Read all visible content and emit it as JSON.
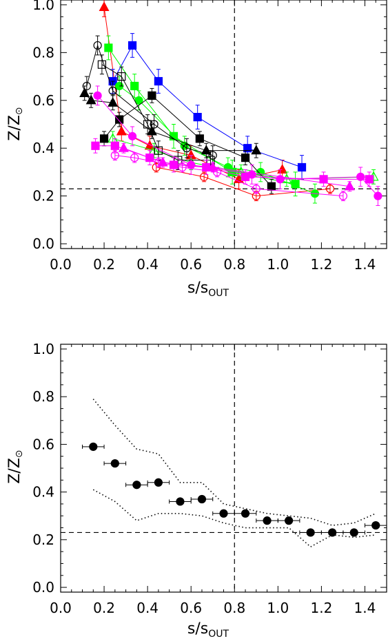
{
  "chart_data": [
    {
      "type": "scatter",
      "panel": "top",
      "xlabel": "s/s",
      "xlabel_sub": "OUT",
      "ylabel": "Z/Z",
      "ylabel_symbol": "⊙",
      "xlim": [
        0.0,
        1.5
      ],
      "ylim": [
        -0.02,
        1.02
      ],
      "xticks": [
        "0.0",
        "0.2",
        "0.4",
        "0.6",
        "0.8",
        "1.0",
        "1.2",
        "1.4"
      ],
      "yticks": [
        "0.0",
        "0.2",
        "0.4",
        "0.6",
        "0.8",
        "1.0"
      ],
      "grid": false,
      "reference_lines": {
        "vertical_x": 0.8,
        "horizontal_y": 0.23,
        "style": "dashed"
      },
      "series": [
        {
          "color": "#ff0000",
          "marker": "triangle",
          "filled": true,
          "x": [
            0.2,
            0.28,
            0.41,
            0.6,
            0.82,
            1.02
          ],
          "y": [
            0.99,
            0.47,
            0.41,
            0.37,
            0.27,
            0.31
          ],
          "yerr": 0.04
        },
        {
          "color": "#ff0000",
          "marker": "circle",
          "filled": false,
          "x": [
            0.44,
            0.66,
            0.9,
            1.24
          ],
          "y": [
            0.32,
            0.28,
            0.2,
            0.23
          ],
          "yerr": 0.02
        },
        {
          "color": "#0000ff",
          "marker": "square",
          "filled": true,
          "x": [
            0.24,
            0.33,
            0.45,
            0.63,
            0.86,
            1.11
          ],
          "y": [
            0.68,
            0.83,
            0.68,
            0.53,
            0.4,
            0.32
          ],
          "yerr": 0.05
        },
        {
          "color": "#00ff00",
          "marker": "square",
          "filled": true,
          "x": [
            0.22,
            0.34,
            0.52,
            0.79,
            1.08
          ],
          "y": [
            0.82,
            0.66,
            0.45,
            0.3,
            0.25
          ],
          "yerr": 0.05
        },
        {
          "color": "#00ff00",
          "marker": "circle",
          "filled": true,
          "x": [
            0.27,
            0.36,
            0.57,
            0.77,
            0.92,
            1.17
          ],
          "y": [
            0.66,
            0.6,
            0.41,
            0.32,
            0.3,
            0.21
          ],
          "yerr": 0.04
        },
        {
          "color": "#00ff00",
          "marker": "triangle",
          "filled": false,
          "x": [
            0.24,
            0.43,
            0.6,
            0.83,
            1.04,
            1.44
          ],
          "y": [
            0.44,
            0.39,
            0.34,
            0.3,
            0.27,
            0.28
          ],
          "yerr": 0.03
        },
        {
          "color": "#000000",
          "marker": "triangle",
          "filled": true,
          "x": [
            0.11,
            0.14,
            0.24,
            0.42,
            0.67,
            0.9
          ],
          "y": [
            0.63,
            0.6,
            0.59,
            0.47,
            0.39,
            0.39
          ],
          "yerr": 0.03
        },
        {
          "color": "#000000",
          "marker": "circle",
          "filled": false,
          "x": [
            0.12,
            0.17,
            0.24,
            0.43,
            0.58,
            0.7
          ],
          "y": [
            0.66,
            0.83,
            0.64,
            0.5,
            0.4,
            0.37
          ],
          "yerr": 0.04
        },
        {
          "color": "#000000",
          "marker": "square",
          "filled": false,
          "x": [
            0.19,
            0.28,
            0.4,
            0.45,
            0.54,
            0.69
          ],
          "y": [
            0.75,
            0.7,
            0.5,
            0.39,
            0.35,
            0.35
          ],
          "yerr": 0.04
        },
        {
          "color": "#000000",
          "marker": "square",
          "filled": true,
          "x": [
            0.2,
            0.27,
            0.42,
            0.64,
            0.85,
            0.97
          ],
          "y": [
            0.44,
            0.52,
            0.62,
            0.44,
            0.36,
            0.24
          ],
          "yerr": 0.03
        },
        {
          "color": "#ff00ff",
          "marker": "circle",
          "filled": true,
          "x": [
            0.17,
            0.33,
            0.6,
            0.88,
            1.01,
            1.38,
            1.46
          ],
          "y": [
            0.62,
            0.45,
            0.33,
            0.29,
            0.27,
            0.28,
            0.2
          ],
          "yerr": 0.04
        },
        {
          "color": "#ff00ff",
          "marker": "square",
          "filled": true,
          "x": [
            0.16,
            0.25,
            0.41,
            0.52,
            0.67,
            0.85,
            1.21,
            1.42
          ],
          "y": [
            0.41,
            0.41,
            0.36,
            0.33,
            0.32,
            0.28,
            0.27,
            0.27
          ],
          "yerr": 0.03
        },
        {
          "color": "#ff00ff",
          "marker": "triangle",
          "filled": true,
          "x": [
            0.29,
            0.47,
            0.7,
            1.33
          ],
          "y": [
            0.4,
            0.34,
            0.32,
            0.24
          ],
          "yerr": 0.02
        },
        {
          "color": "#ff00ff",
          "marker": "circle",
          "filled": false,
          "x": [
            0.25,
            0.34,
            0.45,
            0.56,
            0.72,
            0.9,
            1.3
          ],
          "y": [
            0.37,
            0.36,
            0.34,
            0.32,
            0.3,
            0.23,
            0.2
          ],
          "yerr": 0.02
        }
      ]
    },
    {
      "type": "scatter",
      "panel": "bottom",
      "xlabel": "s/s",
      "xlabel_sub": "OUT",
      "ylabel": "Z/Z",
      "ylabel_symbol": "⊙",
      "xlim": [
        0.0,
        1.5
      ],
      "ylim": [
        -0.02,
        1.02
      ],
      "xticks": [
        "0.0",
        "0.2",
        "0.4",
        "0.6",
        "0.8",
        "1.0",
        "1.2",
        "1.4"
      ],
      "yticks": [
        "0.0",
        "0.2",
        "0.4",
        "0.6",
        "0.8",
        "1.0"
      ],
      "grid": false,
      "reference_lines": {
        "vertical_x": 0.8,
        "horizontal_y": 0.23,
        "style": "dashed"
      },
      "series": [
        {
          "color": "#000000",
          "marker": "circle",
          "filled": true,
          "x": [
            0.15,
            0.25,
            0.35,
            0.45,
            0.55,
            0.65,
            0.75,
            0.85,
            0.95,
            1.05,
            1.15,
            1.25,
            1.35,
            1.45
          ],
          "y": [
            0.59,
            0.52,
            0.43,
            0.44,
            0.36,
            0.37,
            0.31,
            0.31,
            0.28,
            0.28,
            0.23,
            0.23,
            0.23,
            0.26
          ],
          "xerr": 0.05
        }
      ],
      "envelope": {
        "style": "dotted",
        "x": [
          0.15,
          0.25,
          0.35,
          0.45,
          0.55,
          0.65,
          0.75,
          0.85,
          0.95,
          1.05,
          1.15,
          1.25,
          1.35,
          1.45
        ],
        "upper": [
          0.79,
          0.68,
          0.58,
          0.56,
          0.44,
          0.44,
          0.35,
          0.33,
          0.31,
          0.3,
          0.29,
          0.26,
          0.27,
          0.31
        ],
        "lower": [
          0.41,
          0.36,
          0.28,
          0.31,
          0.31,
          0.3,
          0.27,
          0.25,
          0.25,
          0.25,
          0.17,
          0.22,
          0.21,
          0.22
        ]
      }
    }
  ]
}
